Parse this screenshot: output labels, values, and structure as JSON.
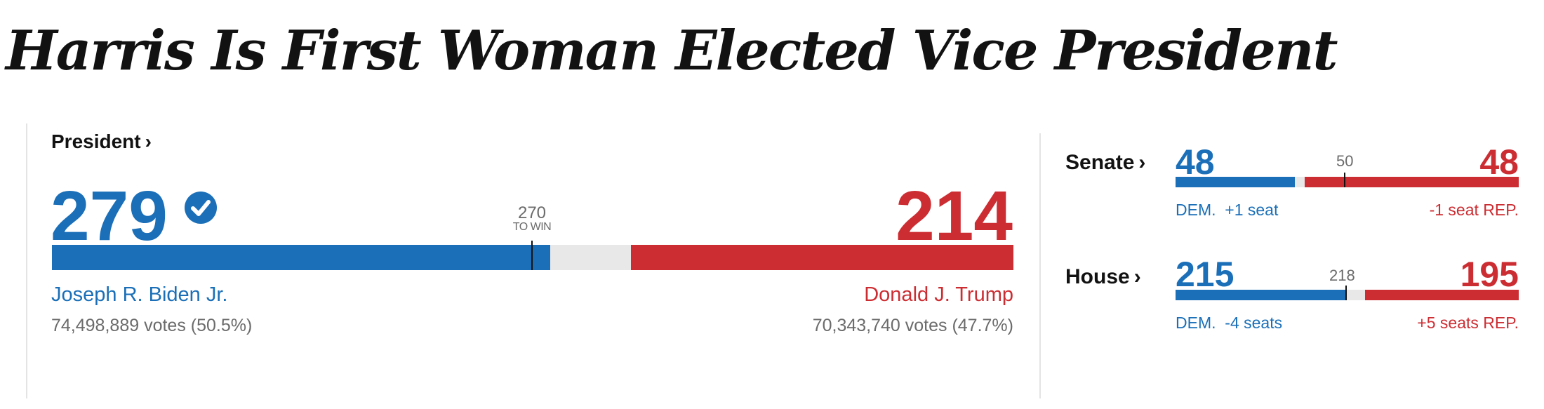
{
  "headline": "Harris Is First Woman Elected Vice President",
  "president": {
    "label": "President",
    "chevron": "›",
    "dem_electoral": "279",
    "rep_electoral": "214",
    "threshold_number": "270",
    "threshold_text": "TO WIN",
    "dem_share_of_538": 0.5186,
    "rep_share_of_538": 0.3978,
    "winner_icon": "check-circle-icon",
    "dem_candidate": "Joseph R. Biden Jr.",
    "dem_votes": "74,498,889 votes (50.5%)",
    "rep_candidate": "Donald J. Trump",
    "rep_votes": "70,343,740 votes (47.7%)"
  },
  "senate": {
    "label": "Senate",
    "chevron": "›",
    "dem_seats": "48",
    "rep_seats": "48",
    "threshold": "50",
    "dem_change_label": "DEM.",
    "dem_change": "+1 seat",
    "rep_change": "-1 seat",
    "rep_change_label": "REP."
  },
  "house": {
    "label": "House",
    "chevron": "›",
    "dem_seats": "215",
    "rep_seats": "195",
    "threshold": "218",
    "dem_change_label": "DEM.",
    "dem_change": "-4 seats",
    "rep_change": "+5 seats",
    "rep_change_label": "REP."
  },
  "colors": {
    "dem": "#1a6fb8",
    "rep": "#cc2d32",
    "track": "#e8e8e8",
    "text": "#121212",
    "muted": "#6b6b6b"
  }
}
